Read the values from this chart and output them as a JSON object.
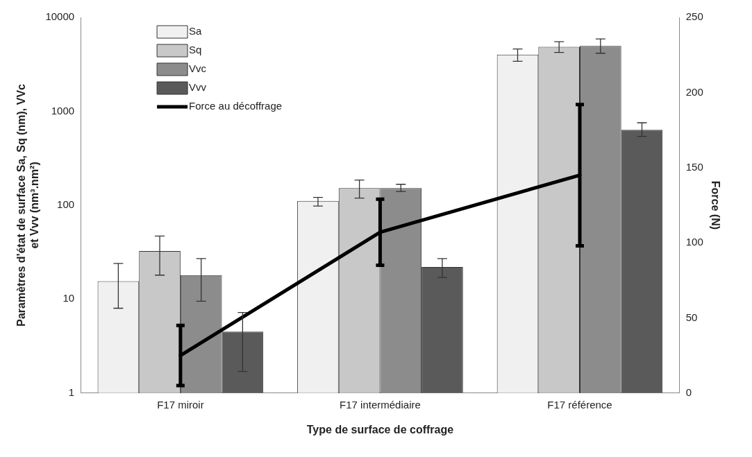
{
  "chart_data": {
    "type": "bar",
    "xlabel": "Type de surface de coffrage",
    "ylabel": "Paramètres d'état de surface Sa, Sq (nm), VVc et Vvv (nm³.nm²)",
    "y2label": "Force (N)",
    "categories": [
      "F17 miroir",
      "F17 intermédiaire",
      "F17 référence"
    ],
    "series": [
      {
        "name": "Sa",
        "color": "#f0f0f0",
        "values": [
          15.5,
          111,
          4010
        ],
        "errors": [
          [
            8,
            24
          ],
          [
            98,
            121
          ],
          [
            3400,
            4600
          ]
        ]
      },
      {
        "name": "Sq",
        "color": "#c8c8c8",
        "values": [
          32.5,
          152,
          4860
        ],
        "errors": [
          [
            18,
            47
          ],
          [
            119,
            185
          ],
          [
            4230,
            5500
          ]
        ]
      },
      {
        "name": "Vvc",
        "color": "#8c8c8c",
        "values": [
          18,
          152,
          4950
        ],
        "errors": [
          [
            9.5,
            27
          ],
          [
            140,
            167
          ],
          [
            4150,
            5900
          ]
        ]
      },
      {
        "name": "Vvv",
        "color": "#5a5a5a",
        "values": [
          4.5,
          22,
          634
        ],
        "errors": [
          [
            1.7,
            7.2
          ],
          [
            17,
            27
          ],
          [
            540,
            755
          ]
        ]
      },
      {
        "name": "Force au décoffrage",
        "type": "line",
        "axis": "y2",
        "color": "#000000",
        "values": [
          25,
          107,
          145
        ],
        "errors": [
          20,
          22,
          47
        ]
      }
    ],
    "log": "y",
    "ylim": [
      1,
      10000
    ],
    "yticks": [
      1,
      10,
      100,
      1000,
      10000
    ],
    "y2lim": [
      0,
      250
    ],
    "y2ticks": [
      0,
      50,
      100,
      150,
      200,
      250
    ],
    "grid": false,
    "legend": "top left",
    "marker": "none",
    "line_style": "solid"
  }
}
